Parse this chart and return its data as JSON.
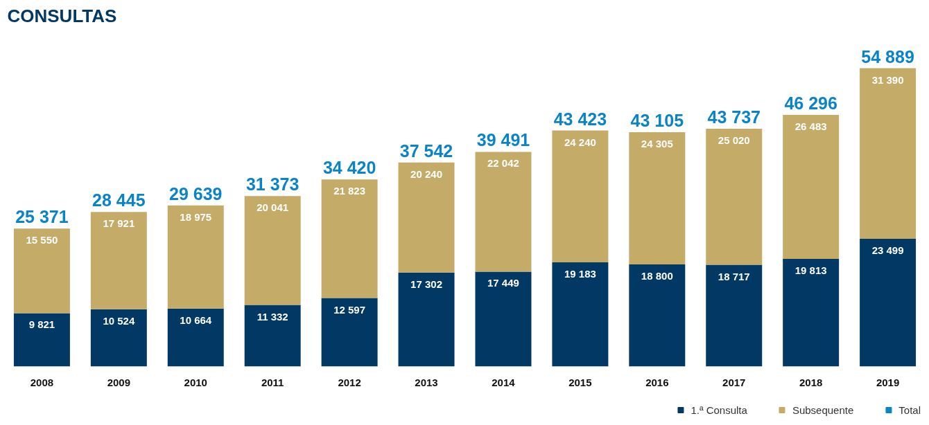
{
  "chart_data": {
    "type": "bar",
    "title": "CONSULTAS",
    "stacked": true,
    "legend": "bottom right",
    "categories": [
      "2008",
      "2009",
      "2010",
      "2011",
      "2012",
      "2013",
      "2014",
      "2015",
      "2016",
      "2017",
      "2018",
      "2019"
    ],
    "totals": [
      "25 371",
      "28 445",
      "29 639",
      "31 373",
      "34 420",
      "37 542",
      "39 491",
      "43 423",
      "43 105",
      "43 737",
      "46 296",
      "54 889"
    ],
    "series": [
      {
        "name": "1.ª Consulta",
        "color": "#023864",
        "values": [
          9821,
          10524,
          10664,
          11332,
          12597,
          17302,
          17449,
          19183,
          18800,
          18717,
          19813,
          23499
        ],
        "value_labels": [
          "9 821",
          "10 524",
          "10 664",
          "11 332",
          "12 597",
          "17 302",
          "17 449",
          "19 183",
          "18 800",
          "18 717",
          "19 813",
          "23 499"
        ]
      },
      {
        "name": "Subsequente",
        "color": "#c4ab68",
        "values": [
          15550,
          17921,
          18975,
          20041,
          21823,
          20240,
          22042,
          24240,
          24305,
          25020,
          26483,
          31390
        ],
        "value_labels": [
          "15 550",
          "17 921",
          "18 975",
          "20 041",
          "21 823",
          "20 240",
          "22 042",
          "24 240",
          "24 305",
          "25 020",
          "26 483",
          "31 390"
        ]
      },
      {
        "name": "Total",
        "color": "#0a84c8",
        "values": [
          null,
          null,
          null,
          null,
          null,
          null,
          null,
          null,
          null,
          null,
          null,
          null
        ]
      }
    ]
  }
}
